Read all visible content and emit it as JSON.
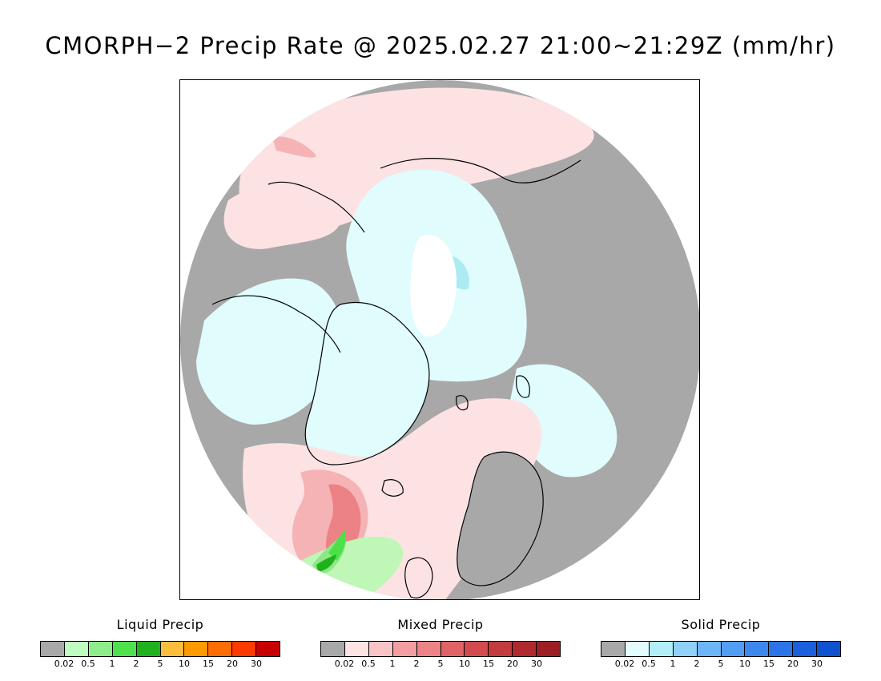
{
  "title": "CMORPH−2 Precip Rate @ 2025.02.27 21:00~21:29Z (mm/hr)",
  "map": {
    "projection": "north-polar-stereographic",
    "colors": {
      "no_precip": "#a8a8a8",
      "mixed_light": "#fde2e3",
      "mixed_mid": "#f5b3b5",
      "mixed_high": "#ec8285",
      "solid_light": "#e0fcfd",
      "solid_mid": "#acebf2",
      "liquid_light": "#bff7b7",
      "liquid_mid": "#8ee887",
      "liquid_high": "#4ce14b",
      "liquid_max": "#1fb21d",
      "white": "#ffffff",
      "coast": "#000000"
    }
  },
  "legends": [
    {
      "title": "Liquid Precip",
      "colors": [
        "#a8a8a8",
        "#c0fbbf",
        "#8eec8a",
        "#4fe04e",
        "#1fb21d",
        "#fbbd3c",
        "#fd9a00",
        "#fd6d00",
        "#fd3a00",
        "#c80000"
      ],
      "ticks": [
        "0.02",
        "0.5",
        "1",
        "2",
        "5",
        "10",
        "15",
        "20",
        "30"
      ]
    },
    {
      "title": "Mixed Precip",
      "colors": [
        "#a8a8a8",
        "#fde3e4",
        "#f9c4c6",
        "#f39ea1",
        "#ec8386",
        "#e06466",
        "#d24b4e",
        "#c43b3e",
        "#b02a2d",
        "#9c2023"
      ],
      "ticks": [
        "0.02",
        "0.5",
        "1",
        "2",
        "5",
        "10",
        "15",
        "20",
        "30"
      ]
    },
    {
      "title": "Solid Precip",
      "colors": [
        "#a8a8a8",
        "#e3fdfd",
        "#b2eef7",
        "#90d0f9",
        "#6cb5f7",
        "#519ef4",
        "#3c88ee",
        "#2c74e8",
        "#1b5fdc",
        "#0f52cf"
      ],
      "ticks": [
        "0.02",
        "0.5",
        "1",
        "2",
        "5",
        "10",
        "15",
        "20",
        "30"
      ]
    }
  ]
}
